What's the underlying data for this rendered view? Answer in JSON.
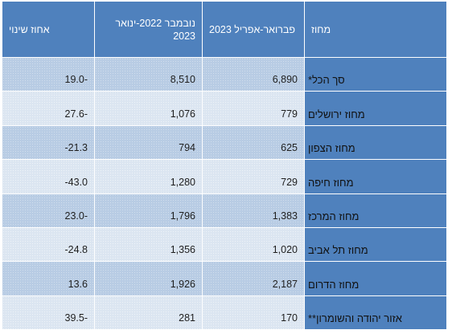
{
  "header": {
    "change_col": "אחוז שינוי",
    "nov_jan_col": "נובמבר 2022-ינואר 2023",
    "feb_apr_col": "פברואר-אפריל 2023",
    "district_col": "מחוז"
  },
  "rows": [
    {
      "district": "סך הכל*",
      "feb_apr": "6,890",
      "nov_jan": "8,510",
      "change": "19.0-"
    },
    {
      "district": "מחוז ירושלים",
      "feb_apr": "779",
      "nov_jan": "1,076",
      "change": "27.6-"
    },
    {
      "district": "מחוז הצפון",
      "feb_apr": "625",
      "nov_jan": "794",
      "change": "-21.3"
    },
    {
      "district": "מחוז חיפה",
      "feb_apr": "729",
      "nov_jan": "1,280",
      "change": "-43.0"
    },
    {
      "district": "מחוז המרכז",
      "feb_apr": "1,383",
      "nov_jan": "1,796",
      "change": "23.0-"
    },
    {
      "district": "מחוז תל אביב",
      "feb_apr": "1,020",
      "nov_jan": "1,356",
      "change": "-24.8"
    },
    {
      "district": "מחוז הדרום",
      "feb_apr": "2,187",
      "nov_jan": "1,926",
      "change": "13.6"
    },
    {
      "district": "אזור יהודה והשומרון**",
      "feb_apr": "170",
      "nov_jan": "281",
      "change": "39.5-"
    }
  ],
  "colors": {
    "header_bg": "#4f81bd",
    "row_dark": "#b8cce4",
    "row_light": "#dbe5f1"
  }
}
